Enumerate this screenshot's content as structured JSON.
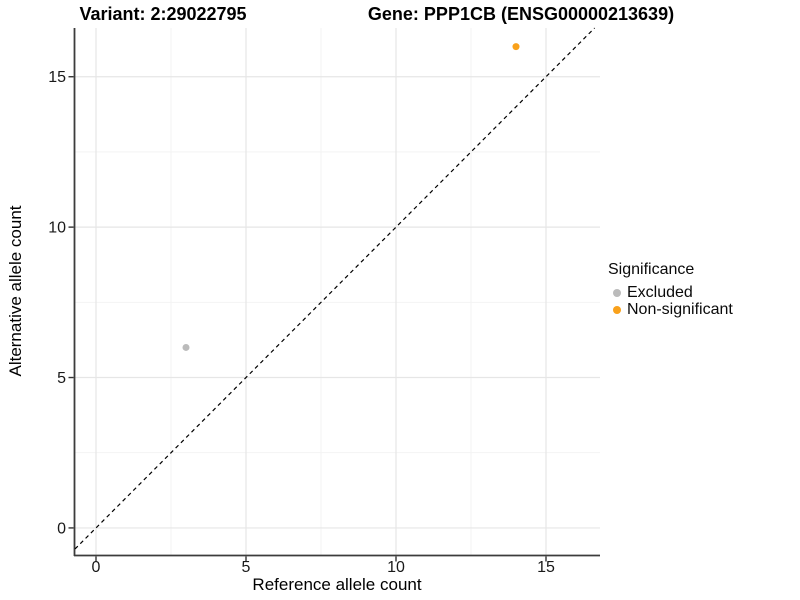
{
  "titles": {
    "variant": "Variant: 2:29022795",
    "gene": "Gene: PPP1CB (ENSG00000213639)"
  },
  "chart_data": {
    "type": "scatter",
    "xlabel": "Reference allele count",
    "ylabel": "Alternative allele count",
    "xlim": [
      -0.7,
      16.8
    ],
    "ylim": [
      -0.9,
      16.62
    ],
    "x_ticks": [
      0,
      5,
      10,
      15
    ],
    "y_ticks": [
      0,
      5,
      10,
      15
    ],
    "x_minor_ticks": [
      2.5,
      7.5,
      12.5
    ],
    "y_minor_ticks": [
      2.5,
      7.5,
      12.5
    ],
    "grid": true,
    "identity_line": {
      "slope": 1,
      "intercept": 0,
      "style": "dashed",
      "color": "#000000"
    },
    "series": [
      {
        "name": "Excluded",
        "color": "#bbbbbb",
        "points": [
          {
            "x": 3,
            "y": 6
          }
        ]
      },
      {
        "name": "Non-significant",
        "color": "#f9a11b",
        "points": [
          {
            "x": 14,
            "y": 16
          }
        ]
      }
    ],
    "legend": {
      "title": "Significance",
      "position": "right"
    }
  },
  "style": {
    "grid_major_color": "#e6e6e6",
    "grid_minor_color": "#f2f2f2",
    "axis_line_color": "#3c3c3c",
    "tick_color": "#333333",
    "tick_label_color": "#1a1a1a",
    "point_radius": 3.5
  }
}
